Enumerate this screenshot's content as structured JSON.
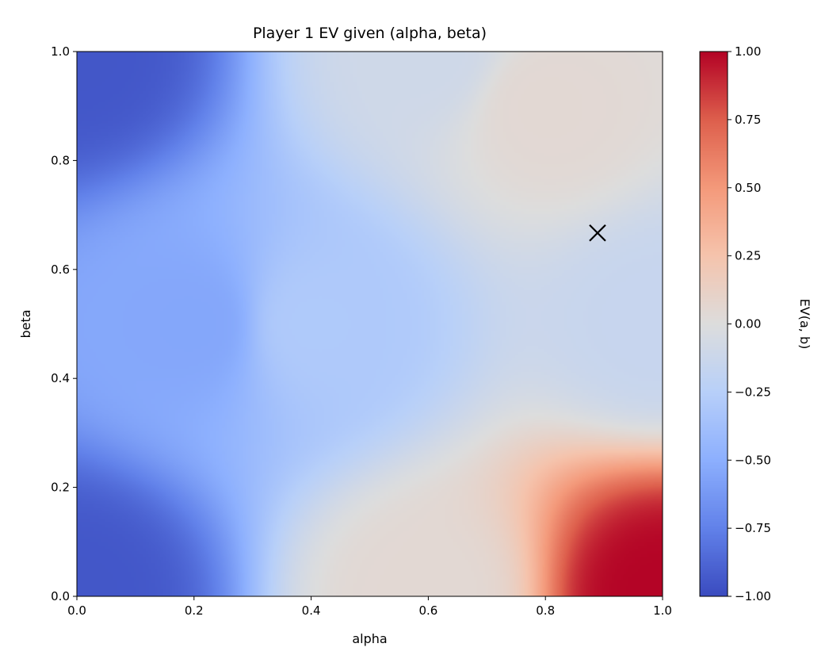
{
  "chart_data": {
    "type": "heatmap",
    "title": "Player 1 EV given (alpha, beta)",
    "xlabel": "alpha",
    "ylabel": "beta",
    "xlim": [
      0.0,
      1.0
    ],
    "ylim": [
      0.0,
      1.0
    ],
    "x_ticks": [
      "0.0",
      "0.2",
      "0.4",
      "0.6",
      "0.8",
      "1.0"
    ],
    "y_ticks": [
      "0.0",
      "0.2",
      "0.4",
      "0.6",
      "0.8",
      "1.0"
    ],
    "colormap": "coolwarm",
    "colorbar": {
      "label": "EV(a, b)",
      "range": [
        -1.0,
        1.0
      ],
      "ticks": [
        "−1.00",
        "−0.75",
        "−0.50",
        "−0.25",
        "0.00",
        "0.25",
        "0.50",
        "0.75",
        "1.00"
      ]
    },
    "grid": false,
    "value_samples": [
      {
        "alpha": 0.0,
        "beta": 0.0,
        "ev": -0.95
      },
      {
        "alpha": 0.0,
        "beta": 1.0,
        "ev": -0.95
      },
      {
        "alpha": 0.2,
        "beta": 0.5,
        "ev": -0.55
      },
      {
        "alpha": 0.4,
        "beta": 0.5,
        "ev": -0.3
      },
      {
        "alpha": 0.6,
        "beta": 0.0,
        "ev": 0.05
      },
      {
        "alpha": 0.6,
        "beta": 1.0,
        "ev": -0.1
      },
      {
        "alpha": 0.8,
        "beta": 0.9,
        "ev": 0.05
      },
      {
        "alpha": 1.0,
        "beta": 0.0,
        "ev": 1.0
      },
      {
        "alpha": 1.0,
        "beta": 0.5,
        "ev": -0.15
      }
    ],
    "marker": {
      "symbol": "x",
      "alpha": 0.889,
      "beta": 0.667,
      "color": "#000000"
    }
  }
}
